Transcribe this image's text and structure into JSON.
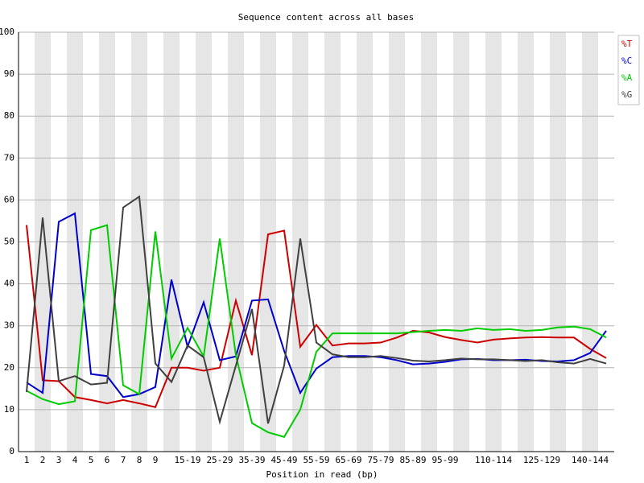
{
  "chart_data": {
    "type": "line",
    "title": "Sequence content across all bases",
    "x_label": "Position in read (bp)",
    "categories": [
      "1",
      "2",
      "3",
      "4",
      "5",
      "6",
      "7",
      "8",
      "9",
      null,
      "15-19",
      null,
      "25-29",
      null,
      "35-39",
      null,
      "45-49",
      null,
      "55-59",
      null,
      "65-69",
      null,
      "75-79",
      null,
      "85-89",
      null,
      "95-99",
      null,
      null,
      "110-114",
      null,
      null,
      "125-129",
      null,
      null,
      "140-144",
      null
    ],
    "series": [
      {
        "name": "%T",
        "color": "#cc0000",
        "values": [
          54,
          17,
          16.8,
          13,
          12.3,
          11.5,
          12.3,
          11.5,
          10.6,
          20,
          20,
          19.3,
          20,
          36,
          23,
          51.8,
          52.7,
          25,
          30.2,
          25.3,
          25.8,
          25.8,
          26,
          27.2,
          28.8,
          28.4,
          27.3,
          26.6,
          26,
          26.7,
          27,
          27.2,
          27.3,
          27.2,
          27.2,
          24.5,
          22.3
        ]
      },
      {
        "name": "%C",
        "color": "#0000cc",
        "values": [
          16.5,
          14,
          54.8,
          56.8,
          18.5,
          18,
          13,
          13.7,
          15.4,
          41,
          25,
          35.6,
          21.8,
          22.7,
          36,
          36.3,
          24,
          14,
          19.8,
          22.5,
          22.8,
          22.8,
          22.5,
          21.8,
          20.8,
          21,
          21.4,
          22,
          22.1,
          21.8,
          21.8,
          21.9,
          21.6,
          21.5,
          21.8,
          23.5,
          28.8
        ]
      },
      {
        "name": "%A",
        "color": "#00cc00",
        "values": [
          14.5,
          12.5,
          11.3,
          12,
          52.8,
          54,
          15.8,
          13.7,
          52.5,
          22.2,
          29.5,
          22.7,
          50.8,
          23,
          6.8,
          4.6,
          3.5,
          10,
          23.8,
          28.2,
          28.2,
          28.2,
          28.2,
          28.2,
          28.5,
          28.8,
          29,
          28.8,
          29.4,
          29,
          29.2,
          28.8,
          29,
          29.6,
          29.8,
          29.2,
          27.2
        ]
      },
      {
        "name": "%G",
        "color": "#404040",
        "values": [
          14.2,
          55.8,
          16.8,
          18,
          16,
          16.4,
          58.2,
          60.8,
          21,
          16.6,
          25.3,
          22.5,
          7.1,
          20.5,
          34,
          6.7,
          20.5,
          50.8,
          26,
          23.2,
          22.5,
          22.5,
          22.8,
          22.3,
          21.7,
          21.5,
          21.8,
          22.2,
          22,
          22,
          21.8,
          21.6,
          21.8,
          21.3,
          21,
          22.1,
          21
        ]
      }
    ],
    "ylim": [
      0,
      100
    ],
    "yticks": [
      0,
      10,
      20,
      30,
      40,
      50,
      60,
      70,
      80,
      90,
      100
    ],
    "grid": true,
    "legend": "top-right"
  }
}
